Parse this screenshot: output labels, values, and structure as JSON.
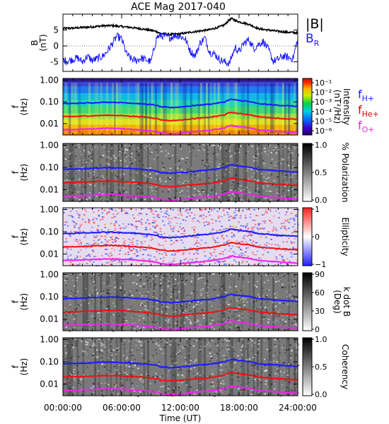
{
  "title": "ACE Mag 2017-040",
  "chart_data": {
    "type": "line+spectrogram",
    "title": "ACE Mag 2017-040",
    "xlabel": "Time (UT)",
    "x_ticks": [
      "00:00:00",
      "06:00:00",
      "12:00:00",
      "18:00:00",
      "24:00:00"
    ],
    "x_range_hours": [
      0,
      24
    ],
    "panels": [
      {
        "id": "B",
        "type": "line",
        "ylabel": "B (nT)",
        "ylabel_main": "B",
        "ylabel_unit": "(nT)",
        "yticks": [
          "5",
          "0",
          "-5"
        ],
        "ylim": [
          -8,
          10
        ],
        "legend": [
          {
            "label": "|B|",
            "color": "#000000"
          },
          {
            "label": "B",
            "sub": "R",
            "color": "#1a1aff"
          }
        ],
        "series": [
          {
            "name": "|B|",
            "color": "#000000",
            "t": [
              0,
              1,
              2,
              3,
              4,
              5,
              6,
              7,
              8,
              9,
              9.5,
              10,
              11,
              12,
              13,
              14,
              15,
              16,
              16.5,
              17,
              17.3,
              17.6,
              18,
              19,
              20,
              21,
              22,
              23,
              24
            ],
            "v": [
              5.5,
              5.6,
              5.8,
              6.0,
              6.3,
              6.4,
              6.1,
              5.8,
              5.4,
              4.9,
              4.6,
              3.9,
              3.6,
              3.8,
              4.3,
              4.7,
              5.1,
              6.0,
              6.6,
              8.2,
              8.6,
              8.0,
              7.6,
              6.8,
              5.4,
              5.0,
              4.6,
              4.3,
              4.1
            ]
          },
          {
            "name": "B_R",
            "color": "#1a1aff",
            "t": [
              0,
              0.5,
              1,
              1.5,
              2,
              2.5,
              3,
              3.5,
              4,
              4.5,
              5,
              5.5,
              6,
              6.5,
              7,
              7.5,
              8,
              8.5,
              9,
              9.3,
              9.6,
              10,
              10.5,
              11,
              11.5,
              12,
              12.5,
              13,
              13.5,
              14,
              14.5,
              15,
              15.5,
              16,
              16.5,
              17,
              17.3,
              17.6,
              18,
              18.5,
              19,
              19.5,
              20,
              20.5,
              21,
              21.5,
              22,
              22.5,
              23,
              23.5,
              24
            ],
            "v": [
              -4.5,
              -4.8,
              -4.2,
              -3.8,
              -5.0,
              -3.2,
              -4.6,
              -4.0,
              -3.4,
              -1.8,
              0.5,
              3.0,
              2.2,
              -2.5,
              -4.2,
              -4.6,
              -3.8,
              -4.4,
              -5.0,
              -1.0,
              2.8,
              3.2,
              3.0,
              2.6,
              3.4,
              3.0,
              2.2,
              -1.5,
              -3.2,
              0.8,
              2.6,
              -2.0,
              -2.5,
              -4.2,
              -5.0,
              -5.5,
              -3.0,
              -0.5,
              -1.8,
              0.8,
              2.0,
              -0.8,
              0.5,
              1.4,
              -1.2,
              -4.8,
              -4.2,
              -3.2,
              -3.6,
              -4.0,
              2.0
            ]
          }
        ]
      },
      {
        "id": "intensity",
        "type": "spectrogram",
        "ylabel_main": "f",
        "ylabel_unit": "(Hz)",
        "yticks": [
          "1.00",
          "0.10",
          "0.01"
        ],
        "ylog": true,
        "ylim_hz": [
          0.003,
          1.2
        ],
        "colorbar_label": "Intensity (nT²/Hz)",
        "colorbar_line1": "Intensity",
        "colorbar_line2": "(nT²/Hz)",
        "colorbar_ticks": [
          "10⁻¹",
          "10⁻²",
          "10⁻³",
          "10⁻⁴",
          "10⁻⁵",
          "10⁻⁶"
        ],
        "colormap": "rainbow",
        "legend": [
          {
            "main": "f",
            "sub": "H+",
            "color": "#1a1aff"
          },
          {
            "main": "f",
            "sub": "He+",
            "color": "#dd0000"
          },
          {
            "main": "f",
            "sub": "O+",
            "color": "#ee22ee"
          }
        ]
      },
      {
        "id": "polarization",
        "type": "spectrogram",
        "ylabel_main": "f",
        "ylabel_unit": "(Hz)",
        "yticks": [
          "1.00",
          "0.10",
          "0.01"
        ],
        "colorbar_label": "% Polarization",
        "colorbar_ticks": [
          "1.0",
          "0.5",
          "0.0"
        ],
        "colormap": "gray"
      },
      {
        "id": "ellipticity",
        "type": "spectrogram",
        "ylabel_main": "f",
        "ylabel_unit": "(Hz)",
        "yticks": [
          "1.00",
          "0.10",
          "0.01"
        ],
        "colorbar_label": "Ellipticity",
        "colorbar_ticks": [
          "1",
          "0",
          "−1"
        ],
        "colormap": "bluewhitered"
      },
      {
        "id": "kdotb",
        "type": "spectrogram",
        "ylabel_main": "f",
        "ylabel_unit": "(Hz)",
        "yticks": [
          "1.00",
          "0.10",
          "0.01"
        ],
        "colorbar_label": "k dot B (Deg)",
        "colorbar_line1": "k dot B",
        "colorbar_line2": "(Deg)",
        "colorbar_ticks": [
          "90",
          "60",
          "30",
          "0"
        ],
        "colormap": "gray"
      },
      {
        "id": "coherency",
        "type": "spectrogram",
        "ylabel_main": "f",
        "ylabel_unit": "(Hz)",
        "yticks": [
          "1.00",
          "0.10",
          "0.01"
        ],
        "colorbar_label": "Coherency",
        "colorbar_ticks": [
          "1.0",
          "0.5",
          "0.0"
        ],
        "colormap": "gray"
      }
    ],
    "gyrofrequency_lines_hz": {
      "t": [
        0,
        1,
        2,
        3,
        4,
        5,
        6,
        7,
        8,
        9,
        9.5,
        10,
        11,
        12,
        13,
        14,
        15,
        16,
        16.5,
        17,
        17.3,
        17.6,
        18,
        19,
        20,
        21,
        22,
        23,
        24
      ],
      "fH": [
        0.083,
        0.085,
        0.088,
        0.091,
        0.096,
        0.097,
        0.093,
        0.088,
        0.082,
        0.075,
        0.07,
        0.059,
        0.055,
        0.058,
        0.065,
        0.072,
        0.078,
        0.091,
        0.1,
        0.125,
        0.131,
        0.122,
        0.116,
        0.104,
        0.082,
        0.076,
        0.07,
        0.066,
        0.062
      ],
      "fHe": [
        0.0209,
        0.0213,
        0.0221,
        0.0229,
        0.024,
        0.0244,
        0.0233,
        0.0221,
        0.0206,
        0.0187,
        0.0175,
        0.0149,
        0.0137,
        0.0145,
        0.0164,
        0.0179,
        0.0194,
        0.0229,
        0.0252,
        0.0313,
        0.0328,
        0.0305,
        0.029,
        0.0259,
        0.0206,
        0.0191,
        0.0175,
        0.0164,
        0.0156
      ],
      "fO": [
        0.0052,
        0.0053,
        0.0055,
        0.0057,
        0.006,
        0.0061,
        0.0058,
        0.0055,
        0.0051,
        0.0047,
        0.0044,
        0.0037,
        0.0034,
        0.0036,
        0.0041,
        0.0045,
        0.0049,
        0.0057,
        0.0063,
        0.0078,
        0.0082,
        0.0076,
        0.0072,
        0.0065,
        0.0051,
        0.0048,
        0.0044,
        0.0041,
        0.0039
      ]
    }
  }
}
